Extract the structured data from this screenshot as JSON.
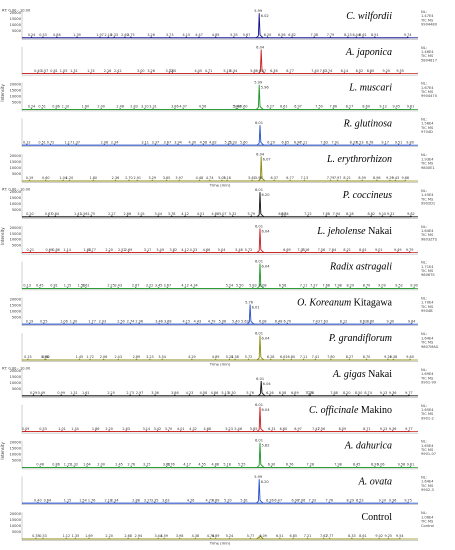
{
  "chart_data": {
    "type": "line",
    "time_range_label": "RT: 0.00 - 10.00",
    "x_axis_label": "Time (min)",
    "y_axis_label": "Intensity",
    "xlim": [
      0,
      10
    ],
    "colors": {
      "navy": "#14148c",
      "red": "#c81e1e",
      "green": "#1e9628",
      "blue": "#2850c8",
      "olive": "#8c8c14",
      "black": "#141414"
    },
    "panels": [
      {
        "name_italic": "C. wilfordii",
        "name_plain": "",
        "color": "navy",
        "peak_rt": 5.99,
        "peak_rel": 0.92,
        "peak_labels": [
          "5.99",
          "6.02"
        ],
        "side_labels": [
          "NL:",
          "1.47E4",
          "TIC MS",
          "9904480"
        ],
        "tick_labels": [
          "0.24",
          "0.53",
          "0.88",
          "1.39",
          "1.97",
          "2.18",
          "2.33",
          "2.60",
          "2.75",
          "3.26",
          "3.73",
          "4.15",
          "4.47",
          "4.89",
          "5.35",
          "5.67",
          "6.20",
          "6.56",
          "6.82",
          "7.38",
          "7.79",
          "8.23",
          "8.44",
          "8.61",
          "8.91",
          "9.74"
        ]
      },
      {
        "name_italic": "A. japonica",
        "name_plain": "",
        "color": "red",
        "peak_rt": 6.04,
        "peak_rel": 0.9,
        "peak_labels": [
          "6.04"
        ],
        "side_labels": [
          "NL:",
          "1.46E4",
          "TIC MS",
          "5804817"
        ],
        "tick_labels": [
          "0.40",
          "0.57",
          "0.81",
          "1.05",
          "1.31",
          "1.74",
          "2.16",
          "2.42",
          "3.00",
          "3.26",
          "3.72",
          "3.80",
          "4.45",
          "4.71",
          "5.18",
          "5.34",
          "5.86",
          "6.07",
          "6.36",
          "6.77",
          "7.40",
          "7.61",
          "7.74",
          "8.14",
          "8.52",
          "8.80",
          "9.20",
          "9.55"
        ]
      },
      {
        "name_italic": "L. muscari",
        "name_plain": "",
        "color": "green",
        "peak_rt": 5.99,
        "peak_rel": 0.92,
        "peak_labels": [
          "5.99",
          "5.96"
        ],
        "side_labels": [
          "NL:",
          "1.67E4",
          "TIC MS",
          "9904470"
        ],
        "tick_labels": [
          "0.24",
          "0.51",
          "0.86",
          "1.10",
          "1.60",
          "2.00",
          "2.48",
          "2.83",
          "3.10",
          "3.31",
          "3.86",
          "4.07",
          "4.56",
          "5.41",
          "5.44",
          "5.60",
          "6.27",
          "6.61",
          "6.97",
          "7.50",
          "7.86",
          "8.27",
          "8.69",
          "9.12",
          "9.45",
          "9.81"
        ]
      },
      {
        "name_italic": "R. glutinosa",
        "name_plain": "",
        "color": "blue",
        "peak_rt": 6.01,
        "peak_rel": 0.75,
        "peak_labels": [
          "6.01"
        ],
        "side_labels": [
          "NL:",
          "1.58E4",
          "TIC MS",
          "9704D"
        ],
        "tick_labels": [
          "0.12",
          "0.51",
          "0.72",
          "1.17",
          "1.37",
          "2.08",
          "2.34",
          "3.11",
          "3.37",
          "3.67",
          "3.94",
          "4.30",
          "4.58",
          "4.82",
          "5.21",
          "5.33",
          "5.60",
          "6.29",
          "6.65",
          "6.96",
          "7.11",
          "7.63",
          "7.91",
          "8.37",
          "8.53",
          "8.78",
          "9.17",
          "9.51",
          "9.80"
        ]
      },
      {
        "name_italic": "L. erythrorhizon",
        "name_plain": "",
        "color": "olive",
        "peak_rt": 6.04,
        "peak_rel": 0.92,
        "peak_labels": [
          "6.04",
          "6.07"
        ],
        "side_labels": [
          "NL:",
          "1.93E4",
          "TIC MS",
          "9800E1"
        ],
        "tick_labels": [
          "0.19",
          "0.60",
          "1.04",
          "1.20",
          "1.80",
          "2.36",
          "2.70",
          "2.91",
          "3.29",
          "3.65",
          "3.97",
          "4.48",
          "4.74",
          "5.05",
          "5.18",
          "5.81",
          "5.98",
          "6.37",
          "6.77",
          "7.13",
          "7.79",
          "7.97",
          "8.21",
          "8.59",
          "8.96",
          "9.29",
          "9.43",
          "9.68"
        ]
      },
      {
        "name_italic": "P. coccineus",
        "name_plain": "",
        "color": "black",
        "peak_rt": 6.01,
        "peak_rel": 0.92,
        "peak_labels": [
          "6.01",
          "6.20"
        ],
        "side_labels": [
          "NL:",
          "1.45E4",
          "TIC MS",
          "9902D1"
        ],
        "tick_labels": [
          "0.20",
          "0.67",
          "0.84",
          "1.41",
          "1.56",
          "1.75",
          "2.27",
          "2.66",
          "3.01",
          "3.44",
          "3.78",
          "4.12",
          "4.51",
          "4.88",
          "5.07",
          "5.32",
          "5.79",
          "6.57",
          "6.64",
          "7.22",
          "7.68",
          "7.94",
          "8.28",
          "8.82",
          "9.10",
          "9.31",
          "9.82"
        ]
      },
      {
        "name_italic": "L. jeholense",
        "name_plain": " Nakai",
        "color": "red",
        "peak_rt": 6.01,
        "peak_rel": 0.9,
        "peak_labels": [
          "6.01",
          "6.04"
        ],
        "side_labels": [
          "NL:",
          "1.64E4",
          "TIC MS",
          "9803ZTS"
        ],
        "tick_labels": [
          "0.21",
          "0.69",
          "0.86",
          "1.14",
          "1.65",
          "1.77",
          "2.20",
          "2.52",
          "2.69",
          "3.17",
          "3.49",
          "3.82",
          "4.12",
          "4.33",
          "4.66",
          "5.04",
          "5.48",
          "5.72",
          "6.69",
          "7.05",
          "7.16",
          "7.56",
          "7.84",
          "8.21",
          "8.61",
          "9.01",
          "9.49",
          "9.79"
        ]
      },
      {
        "name_italic": "Radix astragali",
        "name_plain": "",
        "color": "green",
        "peak_rt": 6.01,
        "peak_rel": 0.93,
        "peak_labels": [
          "6.01",
          "6.04"
        ],
        "side_labels": [
          "NL:",
          "1.71E4",
          "TIC MS",
          "9806TS"
        ],
        "tick_labels": [
          "0.13",
          "0.45",
          "0.81",
          "1.15",
          "1.50",
          "1.61",
          "2.25",
          "2.43",
          "2.87",
          "3.22",
          "3.45",
          "3.67",
          "4.12",
          "4.34",
          "5.24",
          "5.50",
          "5.83",
          "6.08",
          "6.58",
          "7.11",
          "7.37",
          "7.68",
          "7.98",
          "8.29",
          "8.70",
          "9.09",
          "9.52",
          "9.90"
        ]
      },
      {
        "name_italic": "O. Koreanum",
        "name_plain": " Kitagawa",
        "color": "blue",
        "peak_rt": 5.76,
        "peak_rel": 0.74,
        "peak_labels": [
          "5.76",
          "6.01"
        ],
        "side_labels": [
          "NL:",
          "1.70E4",
          "TIC MS",
          "9904B"
        ],
        "tick_labels": [
          "0.19",
          "0.55",
          "1.06",
          "1.30",
          "1.77",
          "2.03",
          "2.50",
          "2.74",
          "2.96",
          "3.46",
          "3.68",
          "4.15",
          "4.43",
          "4.79",
          "5.06",
          "5.40",
          "5.63",
          "6.08",
          "6.48",
          "6.70",
          "7.43",
          "7.63",
          "8.12",
          "8.62",
          "8.80",
          "9.30",
          "9.84"
        ]
      },
      {
        "name_italic": "P. grandiflorum",
        "name_plain": "",
        "color": "olive",
        "peak_rt": 6.01,
        "peak_rel": 0.92,
        "peak_labels": [
          "6.01",
          "6.04"
        ],
        "side_labels": [
          "NL:",
          "1.64E4",
          "TIC MS",
          "9807MAG"
        ],
        "tick_labels": [
          "0.15",
          "0.58",
          "0.60",
          "1.45",
          "1.72",
          "2.06",
          "2.43",
          "2.89",
          "3.23",
          "3.54",
          "4.29",
          "4.89",
          "5.24",
          "5.38",
          "5.72",
          "6.28",
          "6.80",
          "6.61",
          "7.11",
          "7.41",
          "7.80",
          "8.27",
          "8.70",
          "9.24",
          "9.38",
          "9.80"
        ]
      },
      {
        "name_italic": "A. gigas",
        "name_plain": " Nakai",
        "color": "black",
        "peak_rt": 6.04,
        "peak_rel": 0.55,
        "peak_labels": [
          "6.01",
          "6.04"
        ],
        "side_labels": [
          "NL:",
          "1.69E4",
          "TIC MS",
          "9901-99"
        ],
        "tick_labels": [
          "0.29",
          "0.49",
          "0.99",
          "1.31",
          "1.61",
          "2.25",
          "2.73",
          "2.97",
          "3.36",
          "3.86",
          "4.23",
          "4.58",
          "4.86",
          "5.13",
          "5.30",
          "5.76",
          "6.26",
          "6.58",
          "6.89",
          "7.25",
          "7.28",
          "7.88",
          "8.20",
          "8.50",
          "8.74",
          "9.13",
          "9.36",
          "9.77"
        ]
      },
      {
        "name_italic": "C. officinale",
        "name_plain": " Makino",
        "color": "red",
        "peak_rt": 6.01,
        "peak_rel": 0.92,
        "peak_labels": [
          "6.01",
          "6.04"
        ],
        "side_labels": [
          "NL:",
          "1.65E4",
          "TIC MS",
          "9901-2"
        ],
        "tick_labels": [
          "0.09",
          "0.53",
          "1.01",
          "1.34",
          "1.86",
          "2.20",
          "2.63",
          "3.14",
          "3.42",
          "3.70",
          "4.01",
          "4.32",
          "4.68",
          "5.23",
          "5.46",
          "5.85",
          "6.31",
          "6.60",
          "6.97",
          "7.42",
          "7.56",
          "8.09",
          "8.71",
          "9.13",
          "9.36",
          "9.77"
        ]
      },
      {
        "name_italic": "A. dahurica",
        "name_plain": "",
        "color": "green",
        "peak_rt": 6.01,
        "peak_rel": 0.92,
        "peak_labels": [
          "6.01",
          "5.82"
        ],
        "side_labels": [
          "NL:",
          "1.65E4",
          "TIC MS",
          "9901-07"
        ],
        "tick_labels": [
          "0.46",
          "0.86",
          "1.15",
          "1.32",
          "1.64",
          "2.00",
          "2.45",
          "2.76",
          "3.15",
          "3.65",
          "3.76",
          "4.17",
          "4.55",
          "4.88",
          "5.18",
          "5.55",
          "6.30",
          "6.76",
          "7.28",
          "7.98",
          "8.45",
          "8.91",
          "9.06",
          "9.58",
          "9.81"
        ]
      },
      {
        "name_italic": "A. ovata",
        "name_plain": "",
        "color": "blue",
        "peak_rt": 5.99,
        "peak_rel": 0.9,
        "peak_labels": [
          "5.99",
          "6.20"
        ],
        "side_labels": [
          "NL:",
          "1.64E4",
          "TIC MS",
          "9902-3"
        ],
        "tick_labels": [
          "0.40",
          "0.64",
          "1.15",
          "1.54",
          "1.76",
          "2.18",
          "2.34",
          "2.88",
          "3.17",
          "3.35",
          "3.63",
          "4.26",
          "4.73",
          "4.89",
          "5.20",
          "5.61",
          "6.26",
          "6.47",
          "6.90",
          "7.06",
          "7.33",
          "7.76",
          "8.29",
          "8.53",
          "9.10",
          "9.36",
          "9.75"
        ]
      },
      {
        "name_italic": "",
        "name_plain": "Control",
        "color": "olive",
        "peak_rt": 6.0,
        "peak_rel": 0.06,
        "peak_labels": [],
        "side_labels": [
          "NL:",
          "1.06E4",
          "TIC MS",
          "Control"
        ],
        "tick_labels": [
          "0.35",
          "0.53",
          "1.12",
          "1.35",
          "1.69",
          "2.20",
          "2.68",
          "2.94",
          "3.44",
          "3.59",
          "3.98",
          "4.38",
          "4.76",
          "4.89",
          "5.24",
          "5.77",
          "6.09",
          "6.51",
          "6.85",
          "7.21",
          "7.62",
          "7.77",
          "8.33",
          "8.61",
          "9.02",
          "9.25",
          "9.54"
        ]
      }
    ],
    "y_ticks": [
      "20000",
      "15000",
      "10000",
      "5000"
    ]
  }
}
